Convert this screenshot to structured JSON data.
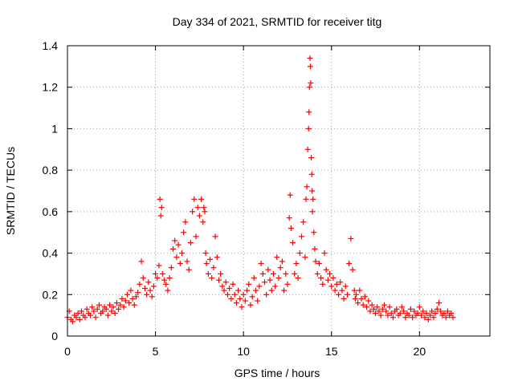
{
  "chart_data": {
    "type": "scatter",
    "title": "Day 334 of 2021, SRMTID for receiver titg",
    "xlabel": "GPS time / hours",
    "ylabel": "SRMTID / TECUs",
    "xlim": [
      0,
      24
    ],
    "ylim": [
      0,
      1.4
    ],
    "xticks": [
      0,
      5,
      10,
      15,
      20
    ],
    "yticks": [
      0,
      0.2,
      0.4,
      0.6,
      0.8,
      1,
      1.2,
      1.4
    ],
    "xtick_labels": [
      "0",
      "5",
      "10",
      "15",
      "20"
    ],
    "ytick_labels": [
      "0",
      "0.2",
      "0.4",
      "0.6",
      "0.8",
      "1",
      "1.2",
      "1.4"
    ],
    "grid": true,
    "marker": "+",
    "color": "#ff0000",
    "series": [
      {
        "name": "SRMTID",
        "x": [
          0.0,
          0.1,
          0.2,
          0.3,
          0.4,
          0.5,
          0.6,
          0.7,
          0.8,
          0.9,
          1.0,
          1.1,
          1.2,
          1.3,
          1.4,
          1.5,
          1.6,
          1.7,
          1.8,
          1.9,
          2.0,
          2.1,
          2.2,
          2.3,
          2.4,
          2.5,
          2.6,
          2.7,
          2.8,
          2.9,
          3.0,
          3.1,
          3.2,
          3.3,
          3.4,
          3.5,
          3.6,
          3.7,
          3.8,
          3.9,
          4.0,
          4.1,
          4.2,
          4.3,
          4.4,
          4.5,
          4.6,
          4.7,
          4.8,
          4.9,
          5.0,
          5.1,
          5.2,
          5.25,
          5.3,
          5.35,
          5.4,
          5.5,
          5.6,
          5.7,
          5.8,
          5.9,
          6.0,
          6.1,
          6.2,
          6.3,
          6.4,
          6.5,
          6.6,
          6.7,
          6.8,
          6.9,
          7.0,
          7.1,
          7.2,
          7.3,
          7.4,
          7.5,
          7.6,
          7.7,
          7.75,
          7.8,
          7.85,
          7.9,
          8.0,
          8.1,
          8.2,
          8.3,
          8.4,
          8.5,
          8.6,
          8.7,
          8.8,
          8.9,
          9.0,
          9.1,
          9.2,
          9.3,
          9.4,
          9.5,
          9.6,
          9.7,
          9.8,
          9.9,
          10.0,
          10.1,
          10.2,
          10.3,
          10.4,
          10.5,
          10.6,
          10.7,
          10.8,
          10.9,
          11.0,
          11.1,
          11.2,
          11.3,
          11.4,
          11.5,
          11.6,
          11.7,
          11.8,
          11.9,
          12.0,
          12.1,
          12.2,
          12.3,
          12.4,
          12.5,
          12.6,
          12.65,
          12.7,
          12.8,
          12.9,
          13.0,
          13.1,
          13.2,
          13.3,
          13.4,
          13.5,
          13.55,
          13.6,
          13.65,
          13.7,
          13.72,
          13.75,
          13.78,
          13.8,
          13.82,
          13.85,
          13.88,
          13.9,
          13.92,
          13.95,
          14.0,
          14.05,
          14.1,
          14.2,
          14.3,
          14.4,
          14.5,
          14.6,
          14.7,
          14.8,
          14.9,
          15.0,
          15.1,
          15.2,
          15.3,
          15.4,
          15.5,
          15.6,
          15.7,
          15.8,
          15.9,
          16.0,
          16.1,
          16.2,
          16.3,
          16.35,
          16.4,
          16.5,
          16.6,
          16.7,
          16.8,
          16.9,
          17.0,
          17.1,
          17.2,
          17.3,
          17.4,
          17.5,
          17.6,
          17.7,
          17.8,
          17.9,
          18.0,
          18.1,
          18.2,
          18.3,
          18.4,
          18.5,
          18.6,
          18.7,
          18.8,
          18.9,
          19.0,
          19.1,
          19.2,
          19.3,
          19.4,
          19.5,
          19.6,
          19.7,
          19.8,
          19.9,
          20.0,
          20.1,
          20.2,
          20.3,
          20.4,
          20.5,
          20.6,
          20.7,
          20.8,
          20.9,
          21.0,
          21.1,
          21.2,
          21.3,
          21.4,
          21.5,
          21.6,
          21.7,
          21.8,
          21.9
        ],
        "y": [
          0.09,
          0.12,
          0.08,
          0.07,
          0.1,
          0.09,
          0.11,
          0.08,
          0.12,
          0.1,
          0.09,
          0.13,
          0.11,
          0.1,
          0.14,
          0.12,
          0.09,
          0.13,
          0.15,
          0.11,
          0.12,
          0.14,
          0.13,
          0.1,
          0.15,
          0.12,
          0.14,
          0.11,
          0.16,
          0.13,
          0.15,
          0.18,
          0.14,
          0.17,
          0.2,
          0.16,
          0.22,
          0.18,
          0.15,
          0.19,
          0.21,
          0.25,
          0.36,
          0.28,
          0.23,
          0.2,
          0.26,
          0.22,
          0.19,
          0.24,
          0.3,
          0.28,
          0.34,
          0.66,
          0.58,
          0.62,
          0.3,
          0.27,
          0.25,
          0.22,
          0.28,
          0.33,
          0.42,
          0.46,
          0.38,
          0.44,
          0.35,
          0.4,
          0.5,
          0.55,
          0.36,
          0.32,
          0.45,
          0.6,
          0.66,
          0.48,
          0.62,
          0.58,
          0.66,
          0.55,
          0.62,
          0.6,
          0.4,
          0.35,
          0.3,
          0.37,
          0.28,
          0.33,
          0.48,
          0.38,
          0.27,
          0.3,
          0.24,
          0.22,
          0.26,
          0.2,
          0.23,
          0.18,
          0.25,
          0.2,
          0.16,
          0.22,
          0.18,
          0.14,
          0.2,
          0.17,
          0.22,
          0.25,
          0.15,
          0.19,
          0.28,
          0.22,
          0.17,
          0.24,
          0.35,
          0.3,
          0.26,
          0.2,
          0.32,
          0.27,
          0.22,
          0.3,
          0.24,
          0.38,
          0.28,
          0.33,
          0.36,
          0.22,
          0.3,
          0.25,
          0.57,
          0.68,
          0.52,
          0.45,
          0.3,
          0.35,
          0.28,
          0.4,
          0.48,
          0.55,
          0.38,
          0.66,
          0.72,
          0.9,
          1.0,
          1.08,
          1.2,
          1.34,
          1.3,
          1.22,
          0.86,
          0.78,
          0.7,
          0.6,
          0.66,
          0.5,
          0.42,
          0.36,
          0.3,
          0.35,
          0.28,
          0.25,
          0.4,
          0.32,
          0.27,
          0.3,
          0.24,
          0.28,
          0.22,
          0.25,
          0.2,
          0.26,
          0.22,
          0.18,
          0.24,
          0.2,
          0.35,
          0.47,
          0.32,
          0.22,
          0.18,
          0.2,
          0.16,
          0.22,
          0.18,
          0.15,
          0.19,
          0.14,
          0.17,
          0.12,
          0.15,
          0.13,
          0.11,
          0.14,
          0.12,
          0.1,
          0.13,
          0.15,
          0.12,
          0.1,
          0.14,
          0.11,
          0.09,
          0.12,
          0.13,
          0.1,
          0.11,
          0.14,
          0.12,
          0.09,
          0.11,
          0.1,
          0.13,
          0.09,
          0.12,
          0.1,
          0.11,
          0.14,
          0.1,
          0.12,
          0.09,
          0.11,
          0.08,
          0.1,
          0.12,
          0.09,
          0.11,
          0.13,
          0.16,
          0.12,
          0.1,
          0.11,
          0.09,
          0.12,
          0.1,
          0.11,
          0.09
        ]
      }
    ]
  }
}
